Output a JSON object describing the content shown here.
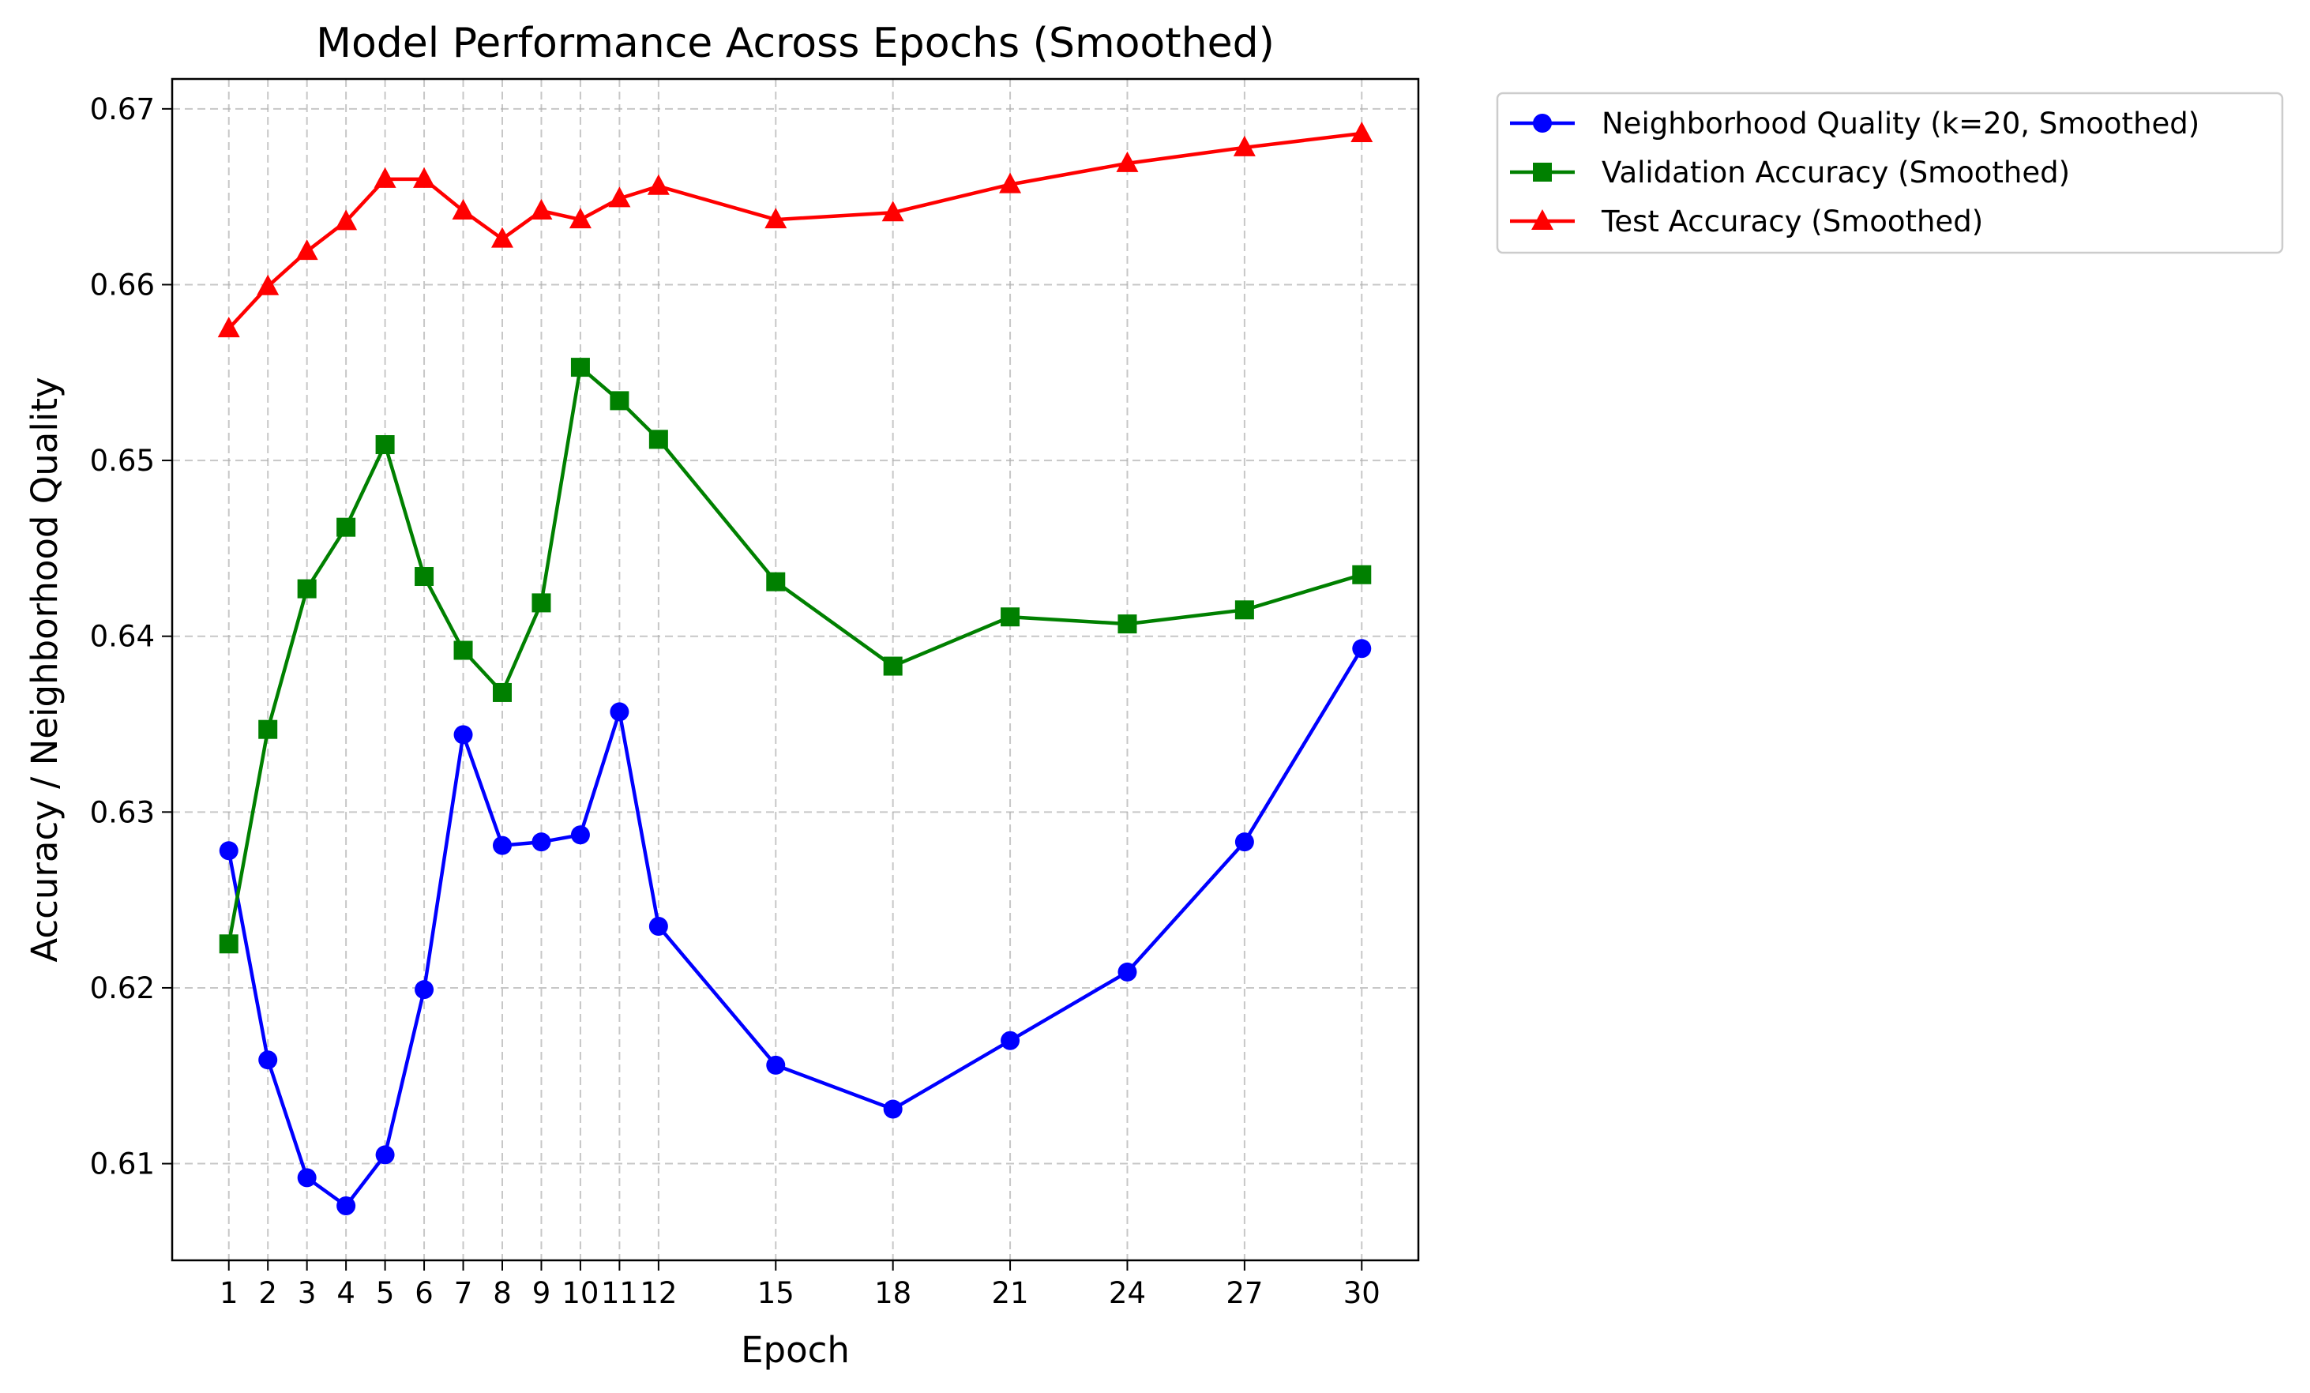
{
  "chart_data": {
    "type": "line",
    "title": "Model Performance Across Epochs (Smoothed)",
    "xlabel": "Epoch",
    "ylabel": "Accuracy / Neighborhood Quality",
    "x": [
      1,
      2,
      3,
      4,
      5,
      6,
      7,
      8,
      9,
      10,
      11,
      12,
      15,
      18,
      21,
      24,
      27,
      30
    ],
    "x_tick_labels": [
      "1",
      "2",
      "3",
      "4",
      "5",
      "6",
      "7",
      "8",
      "9",
      "10",
      "11",
      "12",
      "15",
      "18",
      "21",
      "24",
      "27",
      "30"
    ],
    "xlim": [
      -0.45,
      31.45
    ],
    "ylim": [
      0.6045,
      0.6717
    ],
    "y_ticks": [
      0.61,
      0.62,
      0.63,
      0.64,
      0.65,
      0.66,
      0.67
    ],
    "y_tick_labels": [
      "0.61",
      "0.62",
      "0.63",
      "0.64",
      "0.65",
      "0.66",
      "0.67"
    ],
    "grid": true,
    "legend_position": "outside-top-right",
    "series": [
      {
        "name": "Neighborhood Quality (k=20, Smoothed)",
        "color": "#0000ff",
        "marker": "circle",
        "values": [
          0.6278,
          0.6159,
          0.6092,
          0.6076,
          0.6105,
          0.6199,
          0.6344,
          0.6281,
          0.6283,
          0.6287,
          0.6357,
          0.6235,
          0.6156,
          0.6131,
          0.617,
          0.6209,
          0.6283,
          0.6393
        ]
      },
      {
        "name": "Validation Accuracy (Smoothed)",
        "color": "#008000",
        "marker": "square",
        "values": [
          0.6225,
          0.6347,
          0.6427,
          0.6462,
          0.6509,
          0.6434,
          0.6392,
          0.6368,
          0.6419,
          0.6553,
          0.6534,
          0.6512,
          0.6431,
          0.6383,
          0.6411,
          0.6407,
          0.6415,
          0.6435
        ]
      },
      {
        "name": "Test Accuracy (Smoothed)",
        "color": "#ff0000",
        "marker": "triangle",
        "values": [
          0.6575,
          0.6599,
          0.6619,
          0.6636,
          0.666,
          0.666,
          0.6642,
          0.6626,
          0.6642,
          0.6637,
          0.6649,
          0.6656,
          0.6637,
          0.6641,
          0.6657,
          0.6669,
          0.6678,
          0.6686
        ]
      }
    ]
  }
}
